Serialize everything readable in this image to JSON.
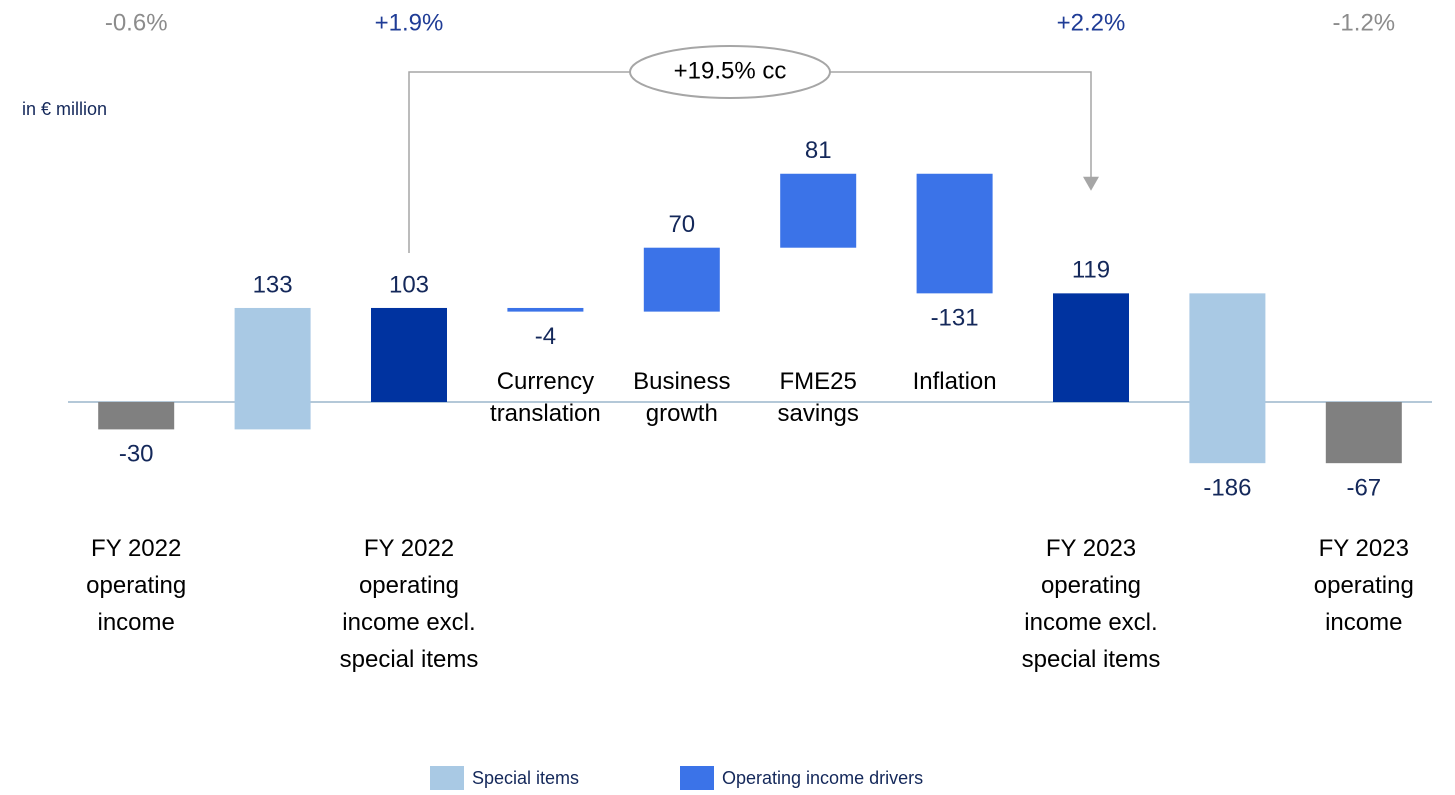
{
  "chart_data": {
    "type": "waterfall",
    "subtitle": "in € million",
    "annotation": "+19.5% cc",
    "categories": [
      "FY 2022\noperating\nincome",
      null,
      "FY 2022\noperating\nincome excl.\nspecial items",
      "Currency\ntranslation",
      "Business\ngrowth",
      "FME25\nsavings",
      "Inflation",
      "FY 2023\noperating\nincome excl.\nspecial items",
      null,
      "FY 2023\noperating\nincome"
    ],
    "values": [
      -30,
      133,
      103,
      -4,
      70,
      81,
      -131,
      119,
      -186,
      -67
    ],
    "measure": [
      "total",
      "relative",
      "total",
      "relative",
      "relative",
      "relative",
      "relative",
      "total",
      "relative",
      "total"
    ],
    "colors": [
      "#808080",
      "#a9c9e4",
      "#0033a0",
      "#3b73e8",
      "#3b73e8",
      "#3b73e8",
      "#3b73e8",
      "#0033a0",
      "#a9c9e4",
      "#808080"
    ],
    "margin_labels": [
      "-0.6%",
      null,
      "+1.9%",
      null,
      null,
      null,
      null,
      "+2.2%",
      null,
      "-1.2%"
    ],
    "legend": [
      {
        "name": "Special items",
        "color": "#a9c9e4"
      },
      {
        "name": "Operating income drivers",
        "color": "#3b73e8"
      }
    ]
  }
}
